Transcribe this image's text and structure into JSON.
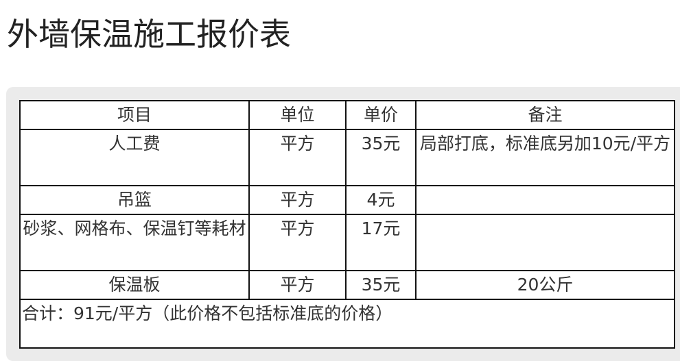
{
  "title": "外墙保温施工报价表",
  "table": {
    "headers": [
      "项目",
      "单位",
      "单价",
      "备注"
    ],
    "rows": [
      [
        "人工费",
        "平方",
        "35元",
        "局部打底，标准底另加10元/平方"
      ],
      [
        "吊篮",
        "平方",
        "4元",
        ""
      ],
      [
        "砂浆、网格布、保温钉等耗材",
        "平方",
        "17元",
        ""
      ],
      [
        "保温板",
        "平方",
        "35元",
        "20公斤"
      ]
    ],
    "total": "合计：91元/平方（此价格不包括标准底的价格）"
  }
}
